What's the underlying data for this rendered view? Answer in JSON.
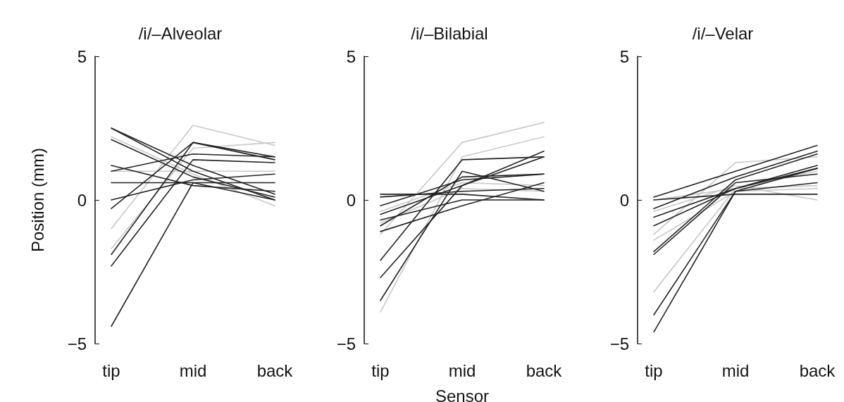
{
  "chart_data": [
    {
      "type": "line",
      "title": "/i/–Alveolar",
      "ylabel": "Position (mm)",
      "categories": [
        "tip",
        "mid",
        "back"
      ],
      "ylim": [
        -5,
        5
      ],
      "yticks": [
        -5,
        0,
        5
      ],
      "grid": false,
      "marker": "none",
      "line_style": "solid",
      "series": [
        {
          "color": "#c8c8c8",
          "values": [
            -1.0,
            2.6,
            1.9
          ]
        },
        {
          "color": "#c8c8c8",
          "values": [
            -1.7,
            1.8,
            2.0
          ]
        },
        {
          "color": "#c8c8c8",
          "values": [
            2.2,
            0.9,
            -0.2
          ]
        },
        {
          "color": "#c8c8c8",
          "values": [
            1.0,
            1.0,
            1.0
          ]
        },
        {
          "color": "#222222",
          "values": [
            2.5,
            1.0,
            0.0
          ]
        },
        {
          "color": "#222222",
          "values": [
            2.5,
            1.2,
            0.2
          ]
        },
        {
          "color": "#222222",
          "values": [
            2.1,
            0.8,
            0.1
          ]
        },
        {
          "color": "#222222",
          "values": [
            1.2,
            0.5,
            0.3
          ]
        },
        {
          "color": "#222222",
          "values": [
            0.6,
            0.6,
            0.6
          ]
        },
        {
          "color": "#222222",
          "values": [
            0.0,
            0.7,
            0.9
          ]
        },
        {
          "color": "#222222",
          "values": [
            -0.3,
            2.0,
            1.4
          ]
        },
        {
          "color": "#222222",
          "values": [
            -1.9,
            2.0,
            1.5
          ]
        },
        {
          "color": "#222222",
          "values": [
            -2.3,
            1.4,
            1.3
          ]
        },
        {
          "color": "#222222",
          "values": [
            -4.4,
            0.6,
            0.0
          ]
        },
        {
          "color": "#222222",
          "values": [
            1.0,
            1.6,
            1.5
          ]
        }
      ]
    },
    {
      "type": "line",
      "title": "/i/–Bilabial",
      "xlabel": "Sensor",
      "categories": [
        "tip",
        "mid",
        "back"
      ],
      "ylim": [
        -5,
        5
      ],
      "yticks": [
        -5,
        0,
        5
      ],
      "grid": false,
      "marker": "none",
      "line_style": "solid",
      "series": [
        {
          "color": "#c8c8c8",
          "values": [
            -3.9,
            1.5,
            2.2
          ]
        },
        {
          "color": "#c8c8c8",
          "values": [
            -1.2,
            2.0,
            2.7
          ]
        },
        {
          "color": "#c8c8c8",
          "values": [
            -0.8,
            0.4,
            0.3
          ]
        },
        {
          "color": "#c8c8c8",
          "values": [
            -0.4,
            0.6,
            0.5
          ]
        },
        {
          "color": "#222222",
          "values": [
            0.2,
            0.2,
            0.0
          ]
        },
        {
          "color": "#222222",
          "values": [
            0.1,
            0.3,
            0.4
          ]
        },
        {
          "color": "#222222",
          "values": [
            -0.2,
            0.7,
            0.9
          ]
        },
        {
          "color": "#222222",
          "values": [
            -0.5,
            0.5,
            1.5
          ]
        },
        {
          "color": "#222222",
          "values": [
            -0.9,
            0.8,
            0.9
          ]
        },
        {
          "color": "#222222",
          "values": [
            -1.1,
            -0.2,
            0.6
          ]
        },
        {
          "color": "#222222",
          "values": [
            -2.1,
            1.4,
            1.5
          ]
        },
        {
          "color": "#222222",
          "values": [
            -2.7,
            0.5,
            1.7
          ]
        },
        {
          "color": "#222222",
          "values": [
            -3.5,
            1.0,
            0.3
          ]
        },
        {
          "color": "#222222",
          "values": [
            -0.7,
            0.0,
            0.0
          ]
        }
      ]
    },
    {
      "type": "line",
      "title": "/i/–Velar",
      "categories": [
        "tip",
        "mid",
        "back"
      ],
      "ylim": [
        -5,
        5
      ],
      "yticks": [
        -5,
        0,
        5
      ],
      "grid": false,
      "marker": "none",
      "line_style": "solid",
      "series": [
        {
          "color": "#c8c8c8",
          "values": [
            -3.2,
            0.4,
            1.0
          ]
        },
        {
          "color": "#c8c8c8",
          "values": [
            -1.2,
            1.3,
            1.5
          ]
        },
        {
          "color": "#c8c8c8",
          "values": [
            -0.4,
            0.5,
            0.0
          ]
        },
        {
          "color": "#c8c8c8",
          "values": [
            -1.4,
            0.3,
            0.4
          ]
        },
        {
          "color": "#c8c8c8",
          "values": [
            0.0,
            0.4,
            0.5
          ]
        },
        {
          "color": "#222222",
          "values": [
            0.1,
            1.0,
            1.9
          ]
        },
        {
          "color": "#222222",
          "values": [
            0.0,
            0.2,
            0.2
          ]
        },
        {
          "color": "#222222",
          "values": [
            -0.3,
            0.8,
            1.7
          ]
        },
        {
          "color": "#222222",
          "values": [
            -0.6,
            0.4,
            1.1
          ]
        },
        {
          "color": "#222222",
          "values": [
            -0.9,
            0.4,
            1.2
          ]
        },
        {
          "color": "#222222",
          "values": [
            -1.8,
            0.7,
            1.6
          ]
        },
        {
          "color": "#222222",
          "values": [
            -1.9,
            0.6,
            0.9
          ]
        },
        {
          "color": "#222222",
          "values": [
            -4.0,
            0.3,
            1.1
          ]
        },
        {
          "color": "#222222",
          "values": [
            -4.6,
            0.3,
            0.6
          ]
        }
      ]
    }
  ]
}
